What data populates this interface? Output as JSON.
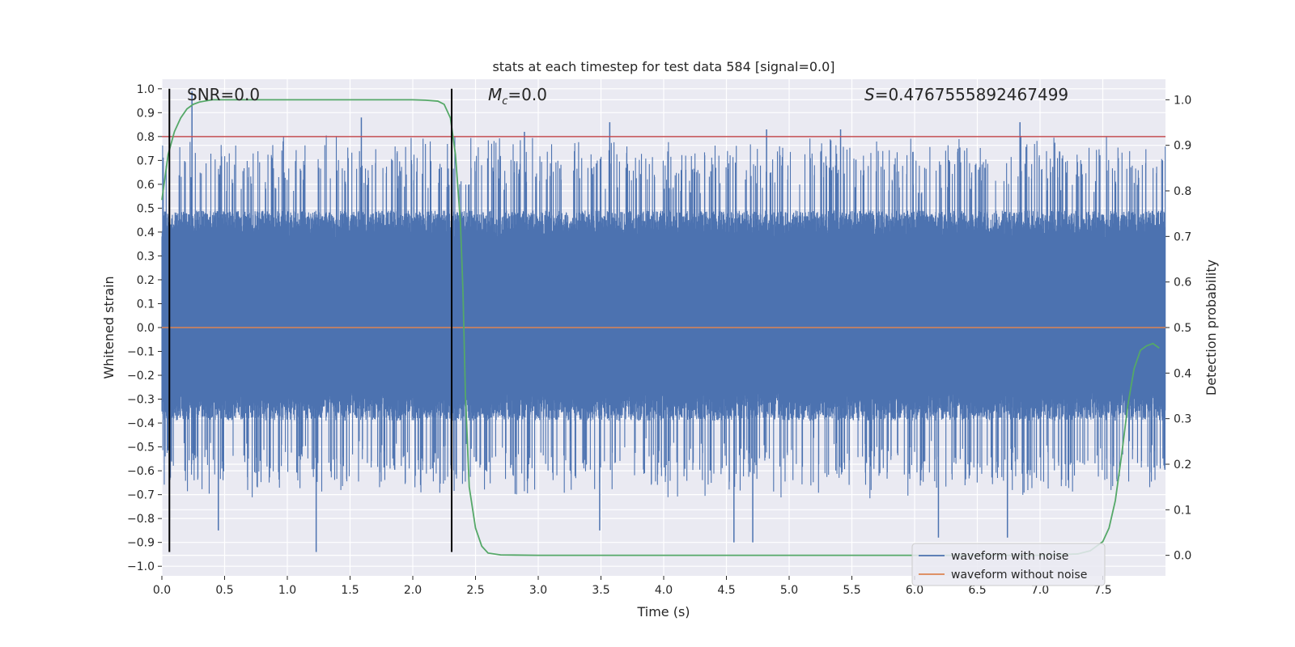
{
  "chart_data": {
    "type": "line",
    "title": "stats at each timestep for test data 584 [signal=0.0]",
    "xlabel": "Time (s)",
    "ylabel": "Whitened strain",
    "ylabel_right": "Detection probability",
    "xlim": [
      0.0,
      8.0
    ],
    "ylim": [
      -1.04,
      1.04
    ],
    "ylim_right": [
      -0.045,
      1.045
    ],
    "x_ticks": [
      0.0,
      0.5,
      1.0,
      1.5,
      2.0,
      2.5,
      3.0,
      3.5,
      4.0,
      4.5,
      5.0,
      5.5,
      6.0,
      6.5,
      7.0,
      7.5
    ],
    "x_tick_labels": [
      "0.0",
      "0.5",
      "1.0",
      "1.5",
      "2.0",
      "2.5",
      "3.0",
      "3.5",
      "4.0",
      "4.5",
      "5.0",
      "5.5",
      "6.0",
      "6.5",
      "7.0",
      "7.5"
    ],
    "y_ticks": [
      1.0,
      0.9,
      0.8,
      0.7,
      0.6,
      0.5,
      0.4,
      0.3,
      0.2,
      0.1,
      0.0,
      -0.1,
      -0.2,
      -0.3,
      -0.4,
      -0.5,
      -0.6,
      -0.7,
      -0.8,
      -0.9,
      -1.0
    ],
    "y_tick_labels": [
      "1.0",
      "0.9",
      "0.8",
      "0.7",
      "0.6",
      "0.5",
      "0.4",
      "0.3",
      "0.2",
      "0.1",
      "0.0",
      "−0.1",
      "−0.2",
      "−0.3",
      "−0.4",
      "−0.5",
      "−0.6",
      "−0.7",
      "−0.8",
      "−0.9",
      "−1.0"
    ],
    "y_right_ticks": [
      1.0,
      0.9,
      0.8,
      0.7,
      0.6,
      0.5,
      0.4,
      0.3,
      0.2,
      0.1,
      0.0
    ],
    "y_right_tick_labels": [
      "1.0",
      "0.9",
      "0.8",
      "0.7",
      "0.6",
      "0.5",
      "0.4",
      "0.3",
      "0.2",
      "0.1",
      "0.0"
    ],
    "grid": true,
    "series": [
      {
        "name": "waveform with noise",
        "color": "#4c72b0",
        "axis": "left",
        "description_values": {
          "typical_band": [
            -0.35,
            0.45
          ],
          "peak_max": 0.99,
          "peak_min": -0.94
        },
        "peaks": [
          {
            "x": 0.24,
            "y": 0.99
          },
          {
            "x": 1.59,
            "y": 0.88
          },
          {
            "x": 3.57,
            "y": 0.86
          },
          {
            "x": 2.89,
            "y": 0.82
          },
          {
            "x": 4.82,
            "y": 0.83
          },
          {
            "x": 5.41,
            "y": 0.83
          },
          {
            "x": 6.84,
            "y": 0.86
          },
          {
            "x": 0.06,
            "y": -0.81
          },
          {
            "x": 0.45,
            "y": -0.85
          },
          {
            "x": 1.23,
            "y": -0.94
          },
          {
            "x": 4.56,
            "y": -0.9
          },
          {
            "x": 4.71,
            "y": -0.9
          },
          {
            "x": 6.19,
            "y": -0.88
          },
          {
            "x": 6.74,
            "y": -0.88
          },
          {
            "x": 3.49,
            "y": -0.85
          }
        ]
      },
      {
        "name": "waveform without noise",
        "color": "#dd8452",
        "axis": "left",
        "x": [
          0.0,
          8.0
        ],
        "y": [
          0.0,
          0.0
        ]
      },
      {
        "name": "detection probability",
        "color": "#55a868",
        "axis": "right",
        "x": [
          0.0,
          0.05,
          0.1,
          0.15,
          0.2,
          0.25,
          0.3,
          0.4,
          0.5,
          1.0,
          1.5,
          2.0,
          2.1,
          2.2,
          2.25,
          2.3,
          2.34,
          2.38,
          2.4,
          2.42,
          2.45,
          2.5,
          2.55,
          2.6,
          2.7,
          3.0,
          5.0,
          7.0,
          7.3,
          7.4,
          7.5,
          7.55,
          7.6,
          7.65,
          7.7,
          7.75,
          7.8,
          7.85,
          7.9,
          7.95
        ],
        "y": [
          0.78,
          0.88,
          0.93,
          0.96,
          0.98,
          0.99,
          0.995,
          1.0,
          1.0,
          1.0,
          1.0,
          1.0,
          0.999,
          0.997,
          0.99,
          0.96,
          0.88,
          0.73,
          0.58,
          0.35,
          0.15,
          0.06,
          0.02,
          0.005,
          0.001,
          0.0,
          0.0,
          0.0,
          0.003,
          0.01,
          0.03,
          0.06,
          0.12,
          0.22,
          0.33,
          0.41,
          0.45,
          0.46,
          0.465,
          0.455
        ]
      }
    ],
    "hlines": [
      {
        "y": 0.8,
        "color": "#c44e52",
        "axis": "left"
      }
    ],
    "vlines": [
      {
        "x": 0.06,
        "y_from": -0.94,
        "y_to": 1.0,
        "color": "#000000"
      },
      {
        "x": 2.31,
        "y_from": -0.94,
        "y_to": 1.0,
        "color": "#000000"
      }
    ],
    "annotations": [
      {
        "text": "SNR=0.0",
        "x": 0.2
      },
      {
        "text_prefix": "M",
        "text_sub": "c",
        "text_suffix": "=0.0",
        "x": 2.6
      },
      {
        "text_prefix": "S",
        "text_suffix": "=0.4767555892467499",
        "x": 5.6
      }
    ],
    "legend": {
      "placement": "bottom-right",
      "entries": [
        {
          "label": "waveform with noise",
          "color": "#4c72b0"
        },
        {
          "label": "waveform without noise",
          "color": "#dd8452"
        }
      ]
    }
  }
}
